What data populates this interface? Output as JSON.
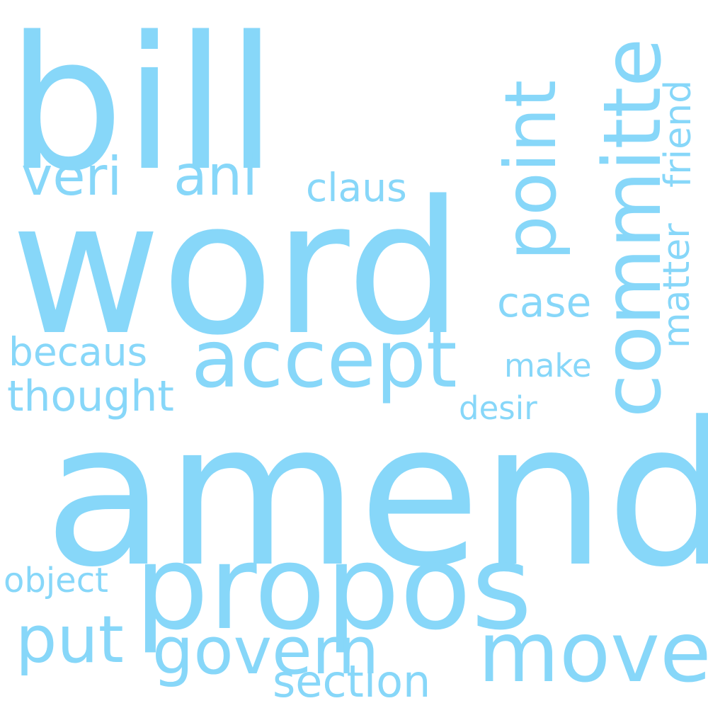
{
  "wordcloud": {
    "color": "#87d7f9",
    "background": "#ffffff",
    "words": {
      "bill": "bill",
      "word": "word",
      "amend": "amend",
      "propos": "propos",
      "accept": "accept",
      "move": "move",
      "govern": "govern",
      "put": "put",
      "section": "section",
      "veri": "veri",
      "ani": "ani",
      "claus": "claus",
      "case": "case",
      "make": "make",
      "desir": "desir",
      "becaus": "becaus",
      "thought": "thought",
      "object": "object",
      "point": "point",
      "committe": "committe",
      "friend": "friend",
      "matter": "matter"
    }
  }
}
